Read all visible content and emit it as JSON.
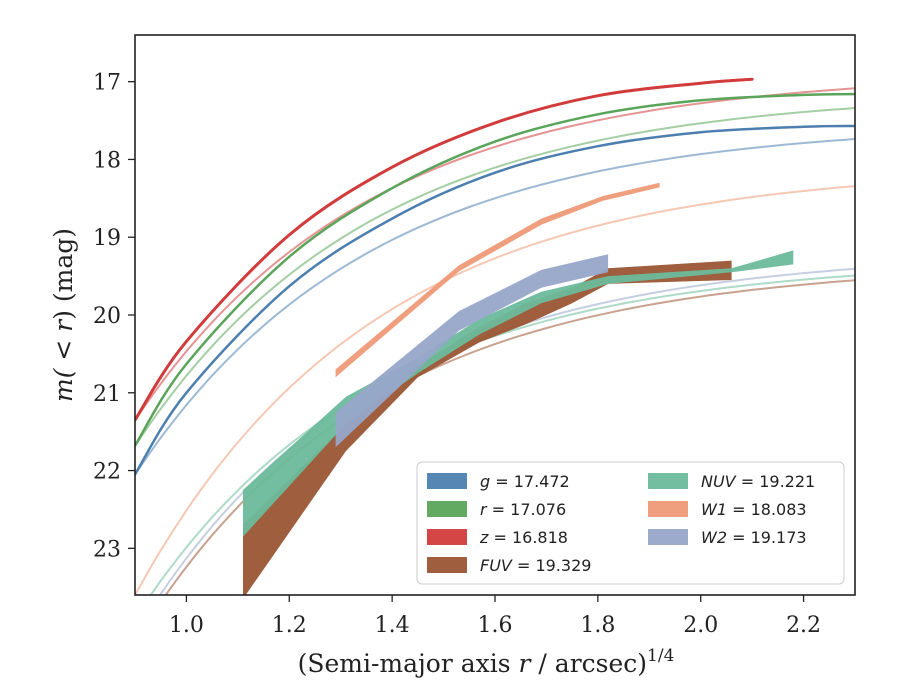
{
  "chart_data": {
    "type": "line",
    "xlabel_prefix": "(Semi-major axis ",
    "xlabel_var": "r",
    "xlabel_mid": " / arcsec)",
    "xlabel_exp": "1/4",
    "ylabel_pre": "m(",
    "ylabel_var": " < r",
    "ylabel_post": ") (mag)",
    "xlim": [
      0.9,
      2.3
    ],
    "ylim": [
      23.6,
      16.4
    ],
    "y_inverted": true,
    "xticks": [
      "1.0",
      "1.2",
      "1.4",
      "1.6",
      "1.8",
      "2.0",
      "2.2"
    ],
    "yticks": [
      "17",
      "18",
      "19",
      "20",
      "21",
      "22",
      "23"
    ],
    "legend_position": "lower-right",
    "grid": false,
    "series": [
      {
        "key": "g",
        "color": "#4c7fb0",
        "legend_var": "g",
        "legend_value": "= 17.472",
        "kind": "line",
        "width": 2.5,
        "model_end_x": 2.3,
        "model_end_y": 17.53,
        "model_start_y": 22.05,
        "x": [
          0.9,
          1.0,
          1.2,
          1.4,
          1.6,
          1.8,
          2.0,
          2.2,
          2.3
        ],
        "y": [
          22.05,
          21.0,
          19.63,
          18.76,
          18.17,
          17.83,
          17.65,
          17.58,
          17.57
        ]
      },
      {
        "key": "r",
        "color": "#5aa55a",
        "legend_var": "r",
        "legend_value": "= 17.076",
        "kind": "line",
        "width": 2.5,
        "model_end_x": 2.3,
        "model_end_y": 17.13,
        "model_start_y": 21.68,
        "x": [
          0.9,
          1.0,
          1.2,
          1.4,
          1.6,
          1.8,
          2.0,
          2.2,
          2.3
        ],
        "y": [
          21.68,
          20.63,
          19.25,
          18.37,
          17.77,
          17.42,
          17.24,
          17.17,
          17.16
        ]
      },
      {
        "key": "z",
        "color": "#d23b3b",
        "legend_var": "z",
        "legend_value": "= 16.818",
        "kind": "line",
        "width": 3,
        "model_end_x": 2.3,
        "model_end_y": 16.88,
        "model_start_y": 21.35,
        "x": [
          0.9,
          1.0,
          1.2,
          1.4,
          1.6,
          1.8,
          2.0,
          2.1
        ],
        "y": [
          21.35,
          20.34,
          18.97,
          18.1,
          17.53,
          17.18,
          17.02,
          16.97
        ]
      },
      {
        "key": "FUV",
        "color": "#9a5533",
        "legend_var": "FUV",
        "legend_value": "= 19.329",
        "kind": "band",
        "model_end_y": 19.33,
        "model_start_y": 24.2,
        "x": [
          1.11,
          1.31,
          1.45,
          1.57,
          1.66,
          1.75,
          1.82,
          2.06
        ],
        "y_low": [
          22.7,
          21.4,
          20.65,
          20.15,
          19.85,
          19.65,
          19.4,
          19.3
        ],
        "y_high": [
          23.65,
          21.75,
          20.8,
          20.35,
          20.12,
          19.85,
          19.6,
          19.55
        ]
      },
      {
        "key": "NUV",
        "color": "#6cbb9b",
        "legend_var": "NUV",
        "legend_value": "= 19.221",
        "kind": "band",
        "model_end_y": 19.28,
        "model_start_y": 23.9,
        "x": [
          1.11,
          1.31,
          1.45,
          1.57,
          1.69,
          1.82,
          2.06,
          2.18
        ],
        "y_low": [
          22.25,
          21.05,
          20.55,
          20.05,
          19.7,
          19.5,
          19.4,
          19.17
        ],
        "y_high": [
          22.85,
          21.4,
          20.75,
          20.25,
          19.85,
          19.6,
          19.45,
          19.35
        ]
      },
      {
        "key": "W1",
        "color": "#ee9a76",
        "legend_var": "W1",
        "legend_value": "= 18.083",
        "kind": "band",
        "model_end_y": 18.09,
        "model_start_y": 23.6,
        "x": [
          1.29,
          1.53,
          1.69,
          1.81,
          1.92
        ],
        "y_low": [
          20.7,
          19.36,
          18.76,
          18.47,
          18.3
        ],
        "y_high": [
          20.8,
          19.44,
          18.84,
          18.53,
          18.36
        ]
      },
      {
        "key": "W2",
        "color": "#97a6c9",
        "legend_var": "W2",
        "legend_value": "= 19.173",
        "kind": "band",
        "model_end_y": 19.18,
        "model_start_y": 24.1,
        "x": [
          1.29,
          1.53,
          1.69,
          1.82
        ],
        "y_low": [
          21.25,
          19.95,
          19.42,
          19.22
        ],
        "y_high": [
          21.7,
          20.2,
          19.65,
          19.45
        ]
      }
    ]
  }
}
